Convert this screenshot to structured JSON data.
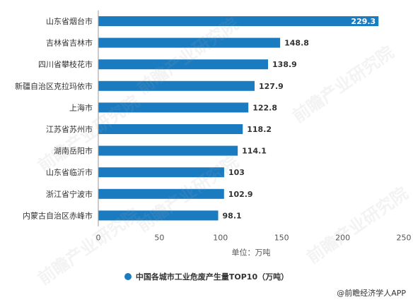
{
  "chart_data": {
    "type": "bar",
    "orientation": "horizontal",
    "categories": [
      "山东省烟台市",
      "吉林省吉林市",
      "四川省攀枝花市",
      "新疆自治区克拉玛依市",
      "上海市",
      "江苏省苏州市",
      "湖南岳阳市",
      "山东省临沂市",
      "浙江省宁波市",
      "内蒙古自治区赤峰市"
    ],
    "values": [
      229.3,
      148.8,
      138.9,
      127.9,
      122.8,
      118.2,
      114.1,
      103,
      102.9,
      98.1
    ],
    "value_labels": [
      "229.3",
      "148.8",
      "138.9",
      "127.9",
      "122.8",
      "118.2",
      "114.1",
      "103",
      "102.9",
      "98.1"
    ],
    "series": [
      {
        "name": "中国各城市工业危废产生量TOP10（万吨）",
        "values": [
          229.3,
          148.8,
          138.9,
          127.9,
          122.8,
          118.2,
          114.1,
          103,
          102.9,
          98.1
        ]
      }
    ],
    "xlabel": "单位：万吨",
    "xlim": [
      0,
      250
    ],
    "xticks": [
      "0",
      "50",
      "100",
      "150",
      "200",
      "250"
    ],
    "grid": false,
    "legend_position": "bottom",
    "bar_color": "#1a7bc1"
  },
  "source": "@前瞻经济学人APP",
  "watermark": "前瞻产业研究院"
}
